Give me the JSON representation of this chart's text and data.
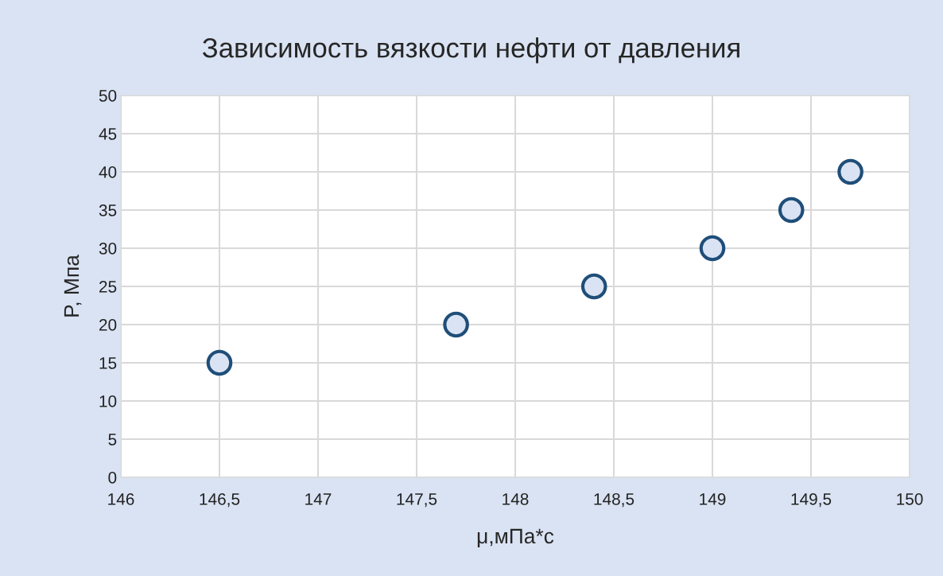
{
  "chart_data": {
    "type": "scatter",
    "title": "Зависимость вязкости нефти от давления",
    "xlabel": "μ,мПа*с",
    "ylabel": "P, Мпа",
    "x": [
      146.5,
      147.7,
      148.4,
      149,
      149.4,
      149.7
    ],
    "series": [
      {
        "color": "#1f4e79",
        "values": [
          15,
          20,
          25,
          30,
          35,
          40
        ]
      }
    ],
    "xlim": [
      146,
      150
    ],
    "xticks": [
      146,
      {
        "value": 146.5,
        "label": "146,5"
      },
      147,
      {
        "value": 147.5,
        "label": "147,5"
      },
      148,
      {
        "value": 148.5,
        "label": "148,5"
      },
      149,
      {
        "value": 149.5,
        "label": "149,5"
      },
      150
    ],
    "ylim": [
      0,
      50
    ],
    "yticks": [
      0,
      5,
      10,
      15,
      20,
      25,
      30,
      35,
      40,
      45,
      50
    ],
    "grid": true,
    "marker": "circle"
  }
}
